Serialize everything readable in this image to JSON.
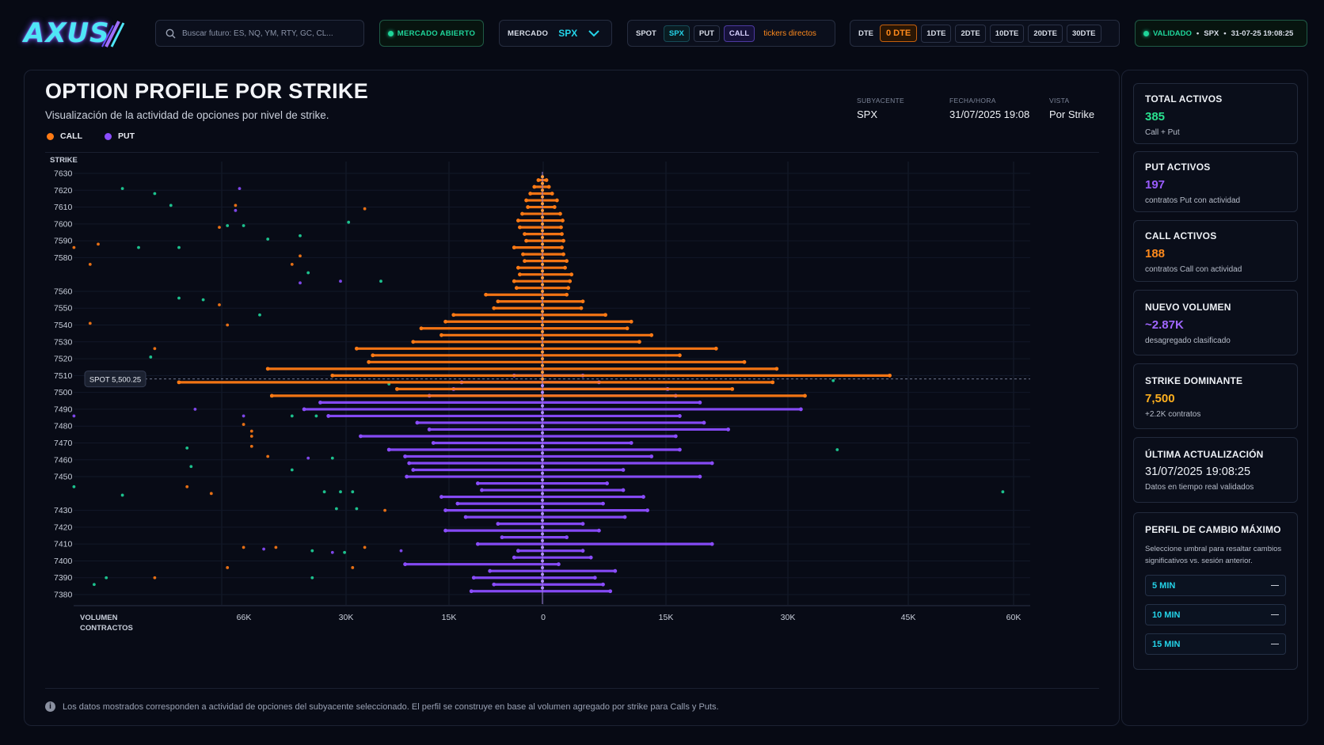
{
  "app": {
    "logo_text": "AXUS"
  },
  "topbar": {
    "search_placeholder": "Buscar futuro: ES, NQ, YM, RTY, GC, CL...",
    "market_status": "MERCADO ABIERTO",
    "market_label": "MERCADO",
    "market_value": "SPX",
    "tickers": {
      "label": "SPOT",
      "items": [
        "SPX",
        "PUT",
        "CALL"
      ],
      "direct": "tickers directos"
    },
    "dte": {
      "label": "DTE",
      "options": [
        "0 DTE",
        "1DTE",
        "2DTE",
        "10DTE",
        "20DTE",
        "30DTE"
      ],
      "active": "0 DTE"
    },
    "validated": {
      "label": "VALIDADO",
      "symbol": "SPX",
      "timestamp": "31-07-25 19:08:25",
      "sep": "•"
    }
  },
  "panel": {
    "title": "OPTION PROFILE POR STRIKE",
    "subtitle": "Visualización de la actividad de opciones por nivel de strike.",
    "legend": [
      {
        "label": "CALL",
        "color": "#ff7a14"
      },
      {
        "label": "PUT",
        "color": "#8b4dff"
      }
    ],
    "meta": [
      {
        "key": "SUBYACENTE",
        "value": "SPX"
      },
      {
        "key": "FECHA/HORA",
        "value": "31/07/2025 19:08"
      },
      {
        "key": "VISTA",
        "value": "Por Strike"
      }
    ],
    "footnote": "Los datos mostrados corresponden a actividad de opciones del subyacente seleccionado. El perfil se construye en base al volumen agregado por strike para Calls y Puts.",
    "spot_label": "SPOT 5,500.25"
  },
  "chart_data": {
    "type": "bar",
    "orientation": "horizontal",
    "y_axis_label": "STRIKE",
    "x_axis_label_1": "VOLUMEN",
    "x_axis_label_2": "CONTRACTOS",
    "y_ticks": [
      "7630",
      "7620",
      "7610",
      "7600",
      "7590",
      "7580",
      "7560",
      "7550",
      "7540",
      "7530",
      "7520",
      "7510",
      "7500",
      "7490",
      "7480",
      "7470",
      "7460",
      "7450",
      "7430",
      "7420",
      "7410",
      "7400",
      "7390",
      "7380"
    ],
    "x_ticks_left": [
      "66K",
      "30K",
      "15K",
      "0"
    ],
    "x_ticks_right": [
      "15K",
      "30K",
      "45K",
      "60K"
    ],
    "call_color": "#ff7a14",
    "put_color": "#8b4dff",
    "call_series": [
      {
        "strike": 7626,
        "left": 500,
        "right": 500
      },
      {
        "strike": 7622,
        "left": 1000,
        "right": 800
      },
      {
        "strike": 7618,
        "left": 1500,
        "right": 1200
      },
      {
        "strike": 7614,
        "left": 2000,
        "right": 1800
      },
      {
        "strike": 7610,
        "left": 1800,
        "right": 1500
      },
      {
        "strike": 7606,
        "left": 2500,
        "right": 2200
      },
      {
        "strike": 7602,
        "left": 3000,
        "right": 2500
      },
      {
        "strike": 7598,
        "left": 2800,
        "right": 2300
      },
      {
        "strike": 7594,
        "left": 2200,
        "right": 2400
      },
      {
        "strike": 7590,
        "left": 2000,
        "right": 2600
      },
      {
        "strike": 7586,
        "left": 3500,
        "right": 2400
      },
      {
        "strike": 7582,
        "left": 2400,
        "right": 2600
      },
      {
        "strike": 7578,
        "left": 2200,
        "right": 3000
      },
      {
        "strike": 7574,
        "left": 3000,
        "right": 2800
      },
      {
        "strike": 7570,
        "left": 2800,
        "right": 3600
      },
      {
        "strike": 7566,
        "left": 3500,
        "right": 3400
      },
      {
        "strike": 7562,
        "left": 3200,
        "right": 3200
      },
      {
        "strike": 7558,
        "left": 7000,
        "right": 3000
      },
      {
        "strike": 7554,
        "left": 5500,
        "right": 5000
      },
      {
        "strike": 7550,
        "left": 6000,
        "right": 4800
      },
      {
        "strike": 7546,
        "left": 11000,
        "right": 7800
      },
      {
        "strike": 7542,
        "left": 12000,
        "right": 11000
      },
      {
        "strike": 7538,
        "left": 15000,
        "right": 10500
      },
      {
        "strike": 7534,
        "left": 12500,
        "right": 13500
      },
      {
        "strike": 7530,
        "left": 16000,
        "right": 12000
      },
      {
        "strike": 7526,
        "left": 23000,
        "right": 21500
      },
      {
        "strike": 7522,
        "left": 21000,
        "right": 17000
      },
      {
        "strike": 7518,
        "left": 21500,
        "right": 25000
      },
      {
        "strike": 7514,
        "left": 34000,
        "right": 29000
      },
      {
        "strike": 7510,
        "left": 26000,
        "right": 43000
      },
      {
        "strike": 7506,
        "left": 45000,
        "right": 28500
      },
      {
        "strike": 7502,
        "left": 18000,
        "right": 23500
      },
      {
        "strike": 7498,
        "left": 33500,
        "right": 32500
      }
    ],
    "put_series": [
      {
        "strike": 7510,
        "left": 3500,
        "right": 5000
      },
      {
        "strike": 7506,
        "left": 10000,
        "right": 7000
      },
      {
        "strike": 7502,
        "left": 11000,
        "right": 15500
      },
      {
        "strike": 7498,
        "left": 14000,
        "right": 16500
      },
      {
        "strike": 7494,
        "left": 27500,
        "right": 19500
      },
      {
        "strike": 7490,
        "left": 29500,
        "right": 32000
      },
      {
        "strike": 7486,
        "left": 26500,
        "right": 17000
      },
      {
        "strike": 7482,
        "left": 15500,
        "right": 20000
      },
      {
        "strike": 7478,
        "left": 14000,
        "right": 23000
      },
      {
        "strike": 7474,
        "left": 22500,
        "right": 16500
      },
      {
        "strike": 7470,
        "left": 13500,
        "right": 11000
      },
      {
        "strike": 7466,
        "left": 19000,
        "right": 17000
      },
      {
        "strike": 7462,
        "left": 17000,
        "right": 13500
      },
      {
        "strike": 7458,
        "left": 16500,
        "right": 21000
      },
      {
        "strike": 7454,
        "left": 16000,
        "right": 10000
      },
      {
        "strike": 7450,
        "left": 16800,
        "right": 19500
      },
      {
        "strike": 7446,
        "left": 8000,
        "right": 8000
      },
      {
        "strike": 7442,
        "left": 7500,
        "right": 10000
      },
      {
        "strike": 7438,
        "left": 12500,
        "right": 12500
      },
      {
        "strike": 7434,
        "left": 10500,
        "right": 7500
      },
      {
        "strike": 7430,
        "left": 12000,
        "right": 13000
      },
      {
        "strike": 7426,
        "left": 9500,
        "right": 10200
      },
      {
        "strike": 7422,
        "left": 5500,
        "right": 5000
      },
      {
        "strike": 7418,
        "left": 12000,
        "right": 7000
      },
      {
        "strike": 7414,
        "left": 5000,
        "right": 3000
      },
      {
        "strike": 7410,
        "left": 8000,
        "right": 21000
      },
      {
        "strike": 7406,
        "left": 3000,
        "right": 5000
      },
      {
        "strike": 7402,
        "left": 3500,
        "right": 6000
      },
      {
        "strike": 7398,
        "left": 17000,
        "right": 2000
      },
      {
        "strike": 7394,
        "left": 6500,
        "right": 9000
      },
      {
        "strike": 7390,
        "left": 8500,
        "right": 6500
      },
      {
        "strike": 7386,
        "left": 6000,
        "right": 7500
      },
      {
        "strike": 7382,
        "left": 8800,
        "right": 8400
      }
    ],
    "scatter_points": [
      {
        "vol": -52000,
        "strike": 7621,
        "color": "#1fd59a"
      },
      {
        "vol": -48000,
        "strike": 7618,
        "color": "#1fd59a"
      },
      {
        "vol": -46000,
        "strike": 7611,
        "color": "#1fd59a"
      },
      {
        "vol": -38000,
        "strike": 7611,
        "color": "#ff7a14"
      },
      {
        "vol": -38000,
        "strike": 7608,
        "color": "#8b4dff"
      },
      {
        "vol": -37500,
        "strike": 7621,
        "color": "#8b4dff"
      },
      {
        "vol": -22000,
        "strike": 7609,
        "color": "#ff7a14"
      },
      {
        "vol": -24000,
        "strike": 7601,
        "color": "#1fd59a"
      },
      {
        "vol": -40000,
        "strike": 7598,
        "color": "#ff7a14"
      },
      {
        "vol": -39000,
        "strike": 7599,
        "color": "#1fd59a"
      },
      {
        "vol": -37000,
        "strike": 7599,
        "color": "#1fd59a"
      },
      {
        "vol": -34000,
        "strike": 7591,
        "color": "#1fd59a"
      },
      {
        "vol": -30000,
        "strike": 7593,
        "color": "#1fd59a"
      },
      {
        "vol": -58000,
        "strike": 7586,
        "color": "#ff7a14"
      },
      {
        "vol": -55000,
        "strike": 7588,
        "color": "#ff7a14"
      },
      {
        "vol": -50000,
        "strike": 7586,
        "color": "#1fd59a"
      },
      {
        "vol": -45000,
        "strike": 7586,
        "color": "#1fd59a"
      },
      {
        "vol": -30000,
        "strike": 7581,
        "color": "#ff7a14"
      },
      {
        "vol": -31000,
        "strike": 7576,
        "color": "#ff7a14"
      },
      {
        "vol": -56000,
        "strike": 7576,
        "color": "#ff7a14"
      },
      {
        "vol": -29000,
        "strike": 7571,
        "color": "#1fd59a"
      },
      {
        "vol": -25000,
        "strike": 7566,
        "color": "#8b4dff"
      },
      {
        "vol": -30000,
        "strike": 7565,
        "color": "#8b4dff"
      },
      {
        "vol": -20000,
        "strike": 7566,
        "color": "#1fd59a"
      },
      {
        "vol": -45000,
        "strike": 7556,
        "color": "#1fd59a"
      },
      {
        "vol": -42000,
        "strike": 7555,
        "color": "#1fd59a"
      },
      {
        "vol": -40000,
        "strike": 7552,
        "color": "#ff7a14"
      },
      {
        "vol": -35000,
        "strike": 7546,
        "color": "#1fd59a"
      },
      {
        "vol": -56000,
        "strike": 7541,
        "color": "#ff7a14"
      },
      {
        "vol": -39000,
        "strike": 7540,
        "color": "#ff7a14"
      },
      {
        "vol": -48000,
        "strike": 7526,
        "color": "#ff7a14"
      },
      {
        "vol": -48500,
        "strike": 7521,
        "color": "#1fd59a"
      },
      {
        "vol": -43000,
        "strike": 7490,
        "color": "#8b4dff"
      },
      {
        "vol": -58000,
        "strike": 7486,
        "color": "#8b4dff"
      },
      {
        "vol": -37000,
        "strike": 7486,
        "color": "#8b4dff"
      },
      {
        "vol": -37000,
        "strike": 7481,
        "color": "#ff7a14"
      },
      {
        "vol": -36000,
        "strike": 7477,
        "color": "#ff7a14"
      },
      {
        "vol": -36000,
        "strike": 7474,
        "color": "#ff7a14"
      },
      {
        "vol": -31000,
        "strike": 7486,
        "color": "#1fd59a"
      },
      {
        "vol": -28000,
        "strike": 7486,
        "color": "#1fd59a"
      },
      {
        "vol": -44000,
        "strike": 7467,
        "color": "#1fd59a"
      },
      {
        "vol": -36000,
        "strike": 7468,
        "color": "#ff7a14"
      },
      {
        "vol": -34000,
        "strike": 7462,
        "color": "#ff7a14"
      },
      {
        "vol": -29000,
        "strike": 7461,
        "color": "#8b4dff"
      },
      {
        "vol": -26000,
        "strike": 7461,
        "color": "#1fd59a"
      },
      {
        "vol": -43500,
        "strike": 7456,
        "color": "#1fd59a"
      },
      {
        "vol": -31000,
        "strike": 7454,
        "color": "#1fd59a"
      },
      {
        "vol": -44000,
        "strike": 7444,
        "color": "#ff7a14"
      },
      {
        "vol": -41000,
        "strike": 7440,
        "color": "#ff7a14"
      },
      {
        "vol": -58000,
        "strike": 7444,
        "color": "#1fd59a"
      },
      {
        "vol": -52000,
        "strike": 7439,
        "color": "#1fd59a"
      },
      {
        "vol": -27000,
        "strike": 7441,
        "color": "#1fd59a"
      },
      {
        "vol": -25000,
        "strike": 7441,
        "color": "#1fd59a"
      },
      {
        "vol": -23500,
        "strike": 7441,
        "color": "#1fd59a"
      },
      {
        "vol": -25500,
        "strike": 7431,
        "color": "#1fd59a"
      },
      {
        "vol": -23000,
        "strike": 7431,
        "color": "#1fd59a"
      },
      {
        "vol": -19500,
        "strike": 7430,
        "color": "#ff7a14"
      },
      {
        "vol": -37000,
        "strike": 7408,
        "color": "#ff7a14"
      },
      {
        "vol": -34500,
        "strike": 7407,
        "color": "#8b4dff"
      },
      {
        "vol": -33000,
        "strike": 7408,
        "color": "#ff7a14"
      },
      {
        "vol": -28500,
        "strike": 7406,
        "color": "#1fd59a"
      },
      {
        "vol": -26000,
        "strike": 7405,
        "color": "#8b4dff"
      },
      {
        "vol": -24500,
        "strike": 7405,
        "color": "#1fd59a"
      },
      {
        "vol": -22000,
        "strike": 7408,
        "color": "#ff7a14"
      },
      {
        "vol": -17500,
        "strike": 7406,
        "color": "#8b4dff"
      },
      {
        "vol": -39000,
        "strike": 7396,
        "color": "#ff7a14"
      },
      {
        "vol": -23500,
        "strike": 7396,
        "color": "#ff7a14"
      },
      {
        "vol": -28500,
        "strike": 7390,
        "color": "#1fd59a"
      },
      {
        "vol": -54000,
        "strike": 7390,
        "color": "#1fd59a"
      },
      {
        "vol": -48000,
        "strike": 7390,
        "color": "#ff7a14"
      },
      {
        "vol": -55500,
        "strike": 7386,
        "color": "#1fd59a"
      },
      {
        "vol": -19000,
        "strike": 7505,
        "color": "#1fd59a"
      },
      {
        "vol": 36000,
        "strike": 7507,
        "color": "#1fd59a"
      },
      {
        "vol": 36500,
        "strike": 7466,
        "color": "#1fd59a"
      },
      {
        "vol": 57000,
        "strike": 7441,
        "color": "#1fd59a"
      }
    ]
  },
  "side": {
    "cards": [
      {
        "title": "TOTAL ACTIVOS",
        "value": "385",
        "sub": "Call + Put",
        "color": "#29e28f"
      },
      {
        "title": "PUT ACTIVOS",
        "value": "197",
        "sub": "contratos Put con actividad",
        "color": "#9a5cff"
      },
      {
        "title": "CALL ACTIVOS",
        "value": "188",
        "sub": "contratos Call con actividad",
        "color": "#ff8a1c"
      },
      {
        "title": "NUEVO VOLUMEN",
        "value": "~2.87K",
        "sub": "desagregado clasificado",
        "color": "#a066ff"
      },
      {
        "title": "STRIKE DOMINANTE",
        "value": "7,500",
        "sub": "+2.2K contratos",
        "color": "#ffb01f"
      },
      {
        "title": "ÚLTIMA ACTUALIZACIÓN",
        "value": "31/07/2025 19:08:25",
        "sub": "Datos en tiempo real validados",
        "color": "#eef1f6"
      }
    ],
    "threshold": {
      "title": "PERFIL DE CAMBIO MÁXIMO",
      "desc": "Seleccione umbral para resaltar cambios significativos vs. sesión anterior.",
      "options": [
        "5 MIN",
        "10 MIN",
        "15 MIN"
      ]
    }
  }
}
